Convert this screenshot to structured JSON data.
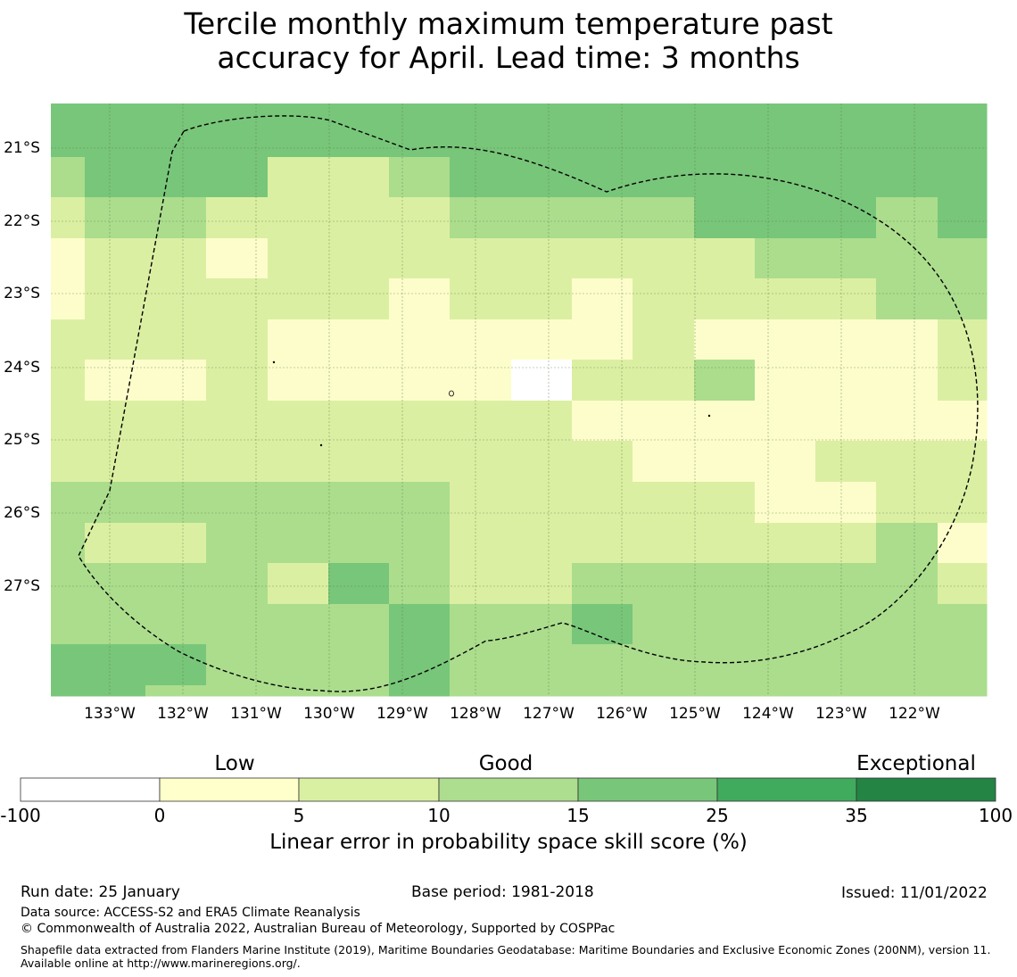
{
  "title_line1": "Tercile monthly maximum temperature past",
  "title_line2": "accuracy for April. Lead time: 3 months",
  "map": {
    "lat_labels": [
      "21°S",
      "22°S",
      "23°S",
      "24°S",
      "25°S",
      "26°S",
      "27°S"
    ],
    "lon_labels": [
      "133°W",
      "132°W",
      "131°W",
      "130°W",
      "129°W",
      "128°W",
      "127°W",
      "126°W",
      "125°W",
      "124°W",
      "123°W",
      "122°W"
    ],
    "grid_legend": {
      "W": "#ffffff",
      "Y": "#fdfdcb",
      "L": "#dbefa2",
      "M": "#abdd8d",
      "D": "#78c679"
    },
    "grid": [
      "DDDDDDDDDDDDDDDD",
      "MDDDLLMDDDDDDDDD",
      "LMMLLLLMMMMDDDMD",
      "YLLYLLLLLLLLMMMM",
      "YLLLLLYLLYLLLLMM",
      "LLLLYYYYYYLYYYYL",
      "LYYLYYYYWLLMYYYL",
      "LLLLLLLLLYYYYYYY",
      "LLLLLLLLLLYYYLLL",
      "MMMMMMMLLLLLYYLL",
      "MLLMMMMLLLLLLLMY",
      "MMMMLDMLLMMMMMML",
      "MMMMMMDMMDMMMMMM",
      "DDDMMMDMMMMMMMMM",
      "DDMMMMDMMMMMMMMM"
    ]
  },
  "colorbar": {
    "category_labels": [
      "Low",
      "Good",
      "Exceptional"
    ],
    "ticks": [
      "-100",
      "0",
      "5",
      "10",
      "15",
      "25",
      "35",
      "100"
    ],
    "colors": [
      "#ffffff",
      "#ffffcc",
      "#d9f0a3",
      "#addd8e",
      "#78c679",
      "#41ab5d",
      "#238443"
    ],
    "label": "Linear error in probability space skill score (%)"
  },
  "footer": {
    "run_date": "Run date: 25 January",
    "base_period": "Base period: 1981-2018",
    "issued": "Issued: 11/01/2022",
    "data_source": "Data source: ACCESS-S2 and ERA5 Climate Reanalysis",
    "copyright": "© Commonwealth of Australia 2022, Australian Bureau of Meteorology, Supported by COSPPac",
    "shapefile": "Shapefile data extracted from Flanders Marine Institute (2019), Maritime Boundaries Geodatabase: Maritime Boundaries and Exclusive Economic Zones (200NM), version 11. Available online at http://www.marineregions.org/."
  }
}
